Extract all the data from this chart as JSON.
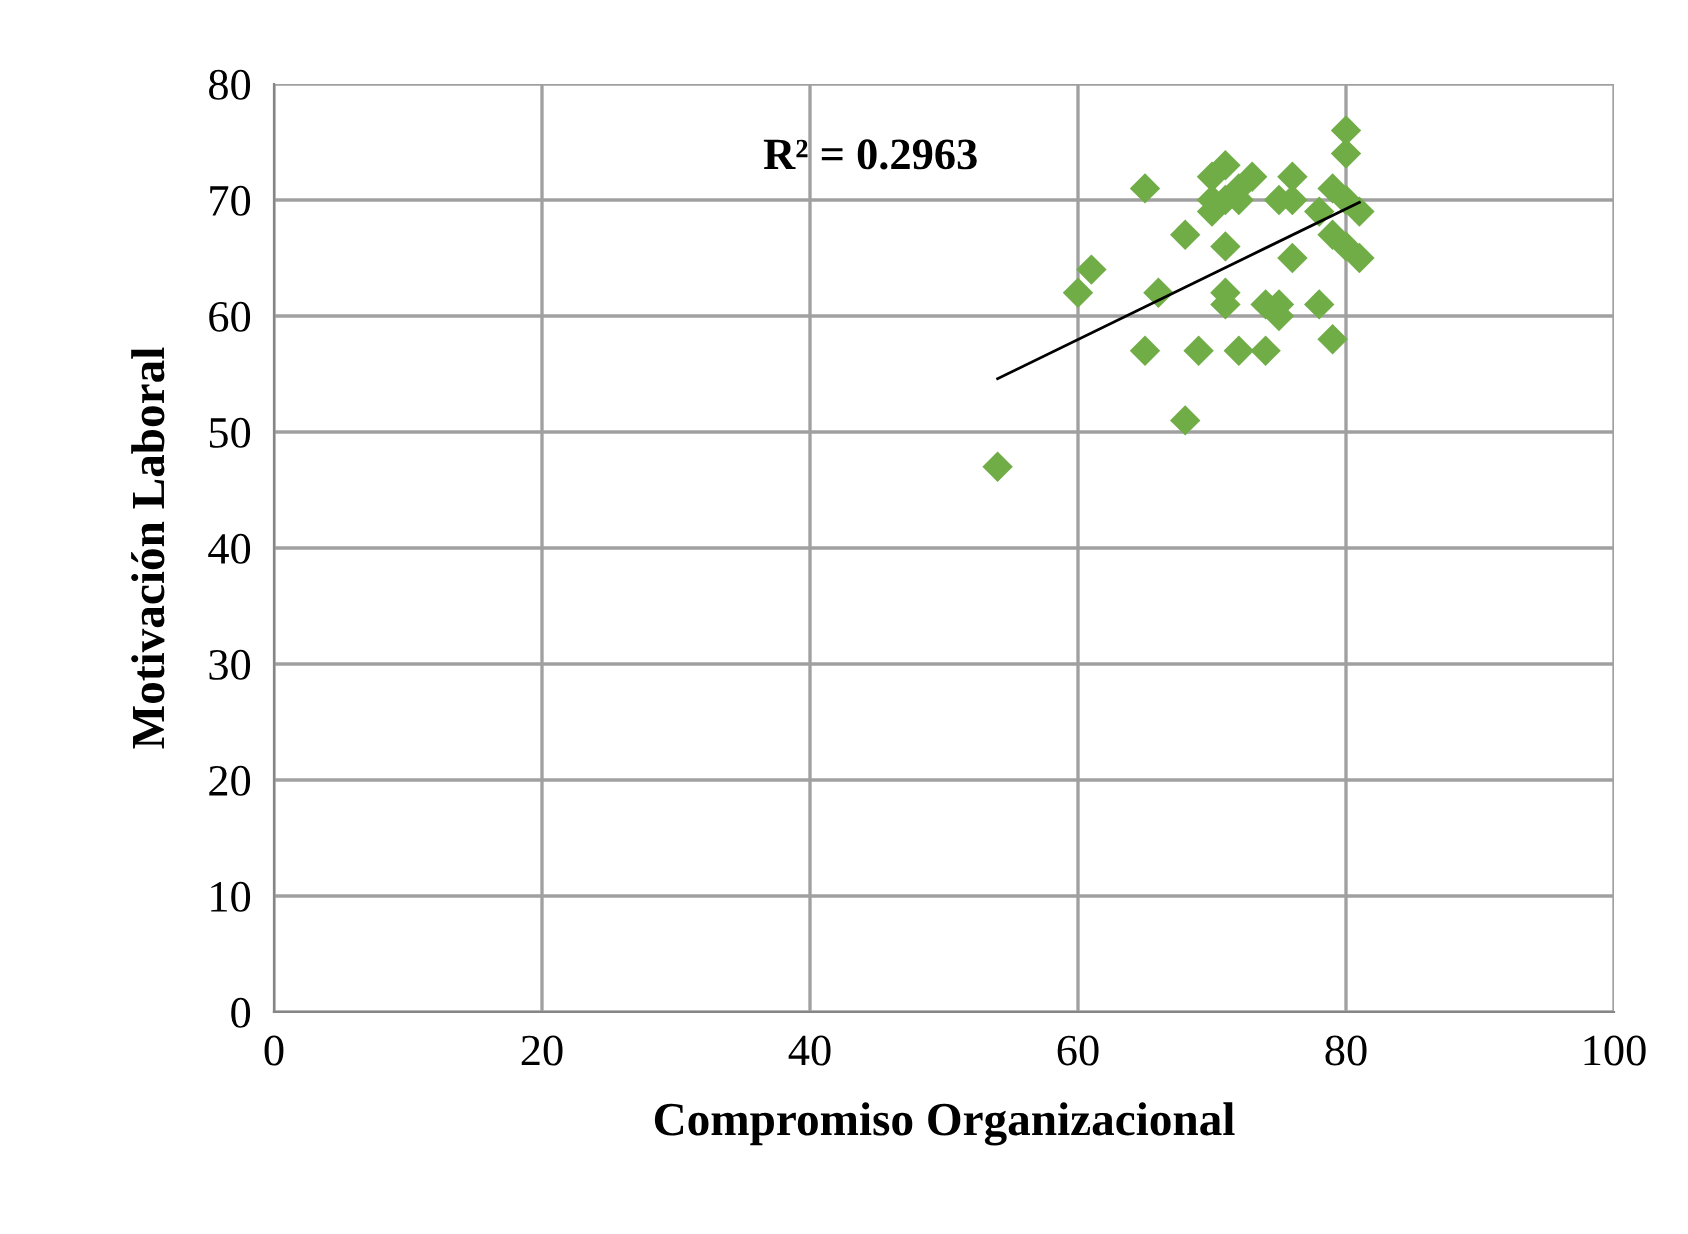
{
  "chart_data": {
    "type": "scatter",
    "xlabel": "Compromiso Organizacional",
    "ylabel": "Motivación Laboral",
    "annotations": [
      "R² = 0.2963"
    ],
    "xlim": [
      0,
      100
    ],
    "xticks": [
      0,
      20,
      40,
      60,
      80,
      100
    ],
    "ylim": [
      0,
      80
    ],
    "yticks": [
      0,
      10,
      20,
      30,
      40,
      50,
      60,
      70,
      80
    ],
    "grid": true,
    "legend": false,
    "series": [
      {
        "color": "#70ad47",
        "marker": "diamond",
        "x": [
          54,
          60,
          61,
          65,
          65,
          66,
          68,
          68,
          69,
          70,
          70,
          71,
          71,
          71,
          71,
          72,
          72,
          72,
          73,
          74,
          74,
          75,
          75,
          75,
          76,
          76,
          76,
          78,
          78,
          79,
          79,
          79,
          80,
          80,
          80,
          81,
          81,
          80,
          71,
          70
        ],
        "values": [
          47,
          62,
          64,
          71,
          57,
          62,
          67,
          51,
          57,
          69,
          72,
          73,
          66,
          62,
          61,
          57,
          70,
          71,
          72,
          61,
          57,
          70,
          61,
          60,
          65,
          72,
          70,
          69,
          61,
          71,
          67,
          58,
          76,
          74,
          66,
          69,
          65,
          70,
          70,
          70
        ]
      },
      {
        "type": "line",
        "color": "#000000",
        "marker": "none",
        "x": [
          54,
          81
        ],
        "values": [
          54.6,
          69.8
        ]
      }
    ]
  }
}
